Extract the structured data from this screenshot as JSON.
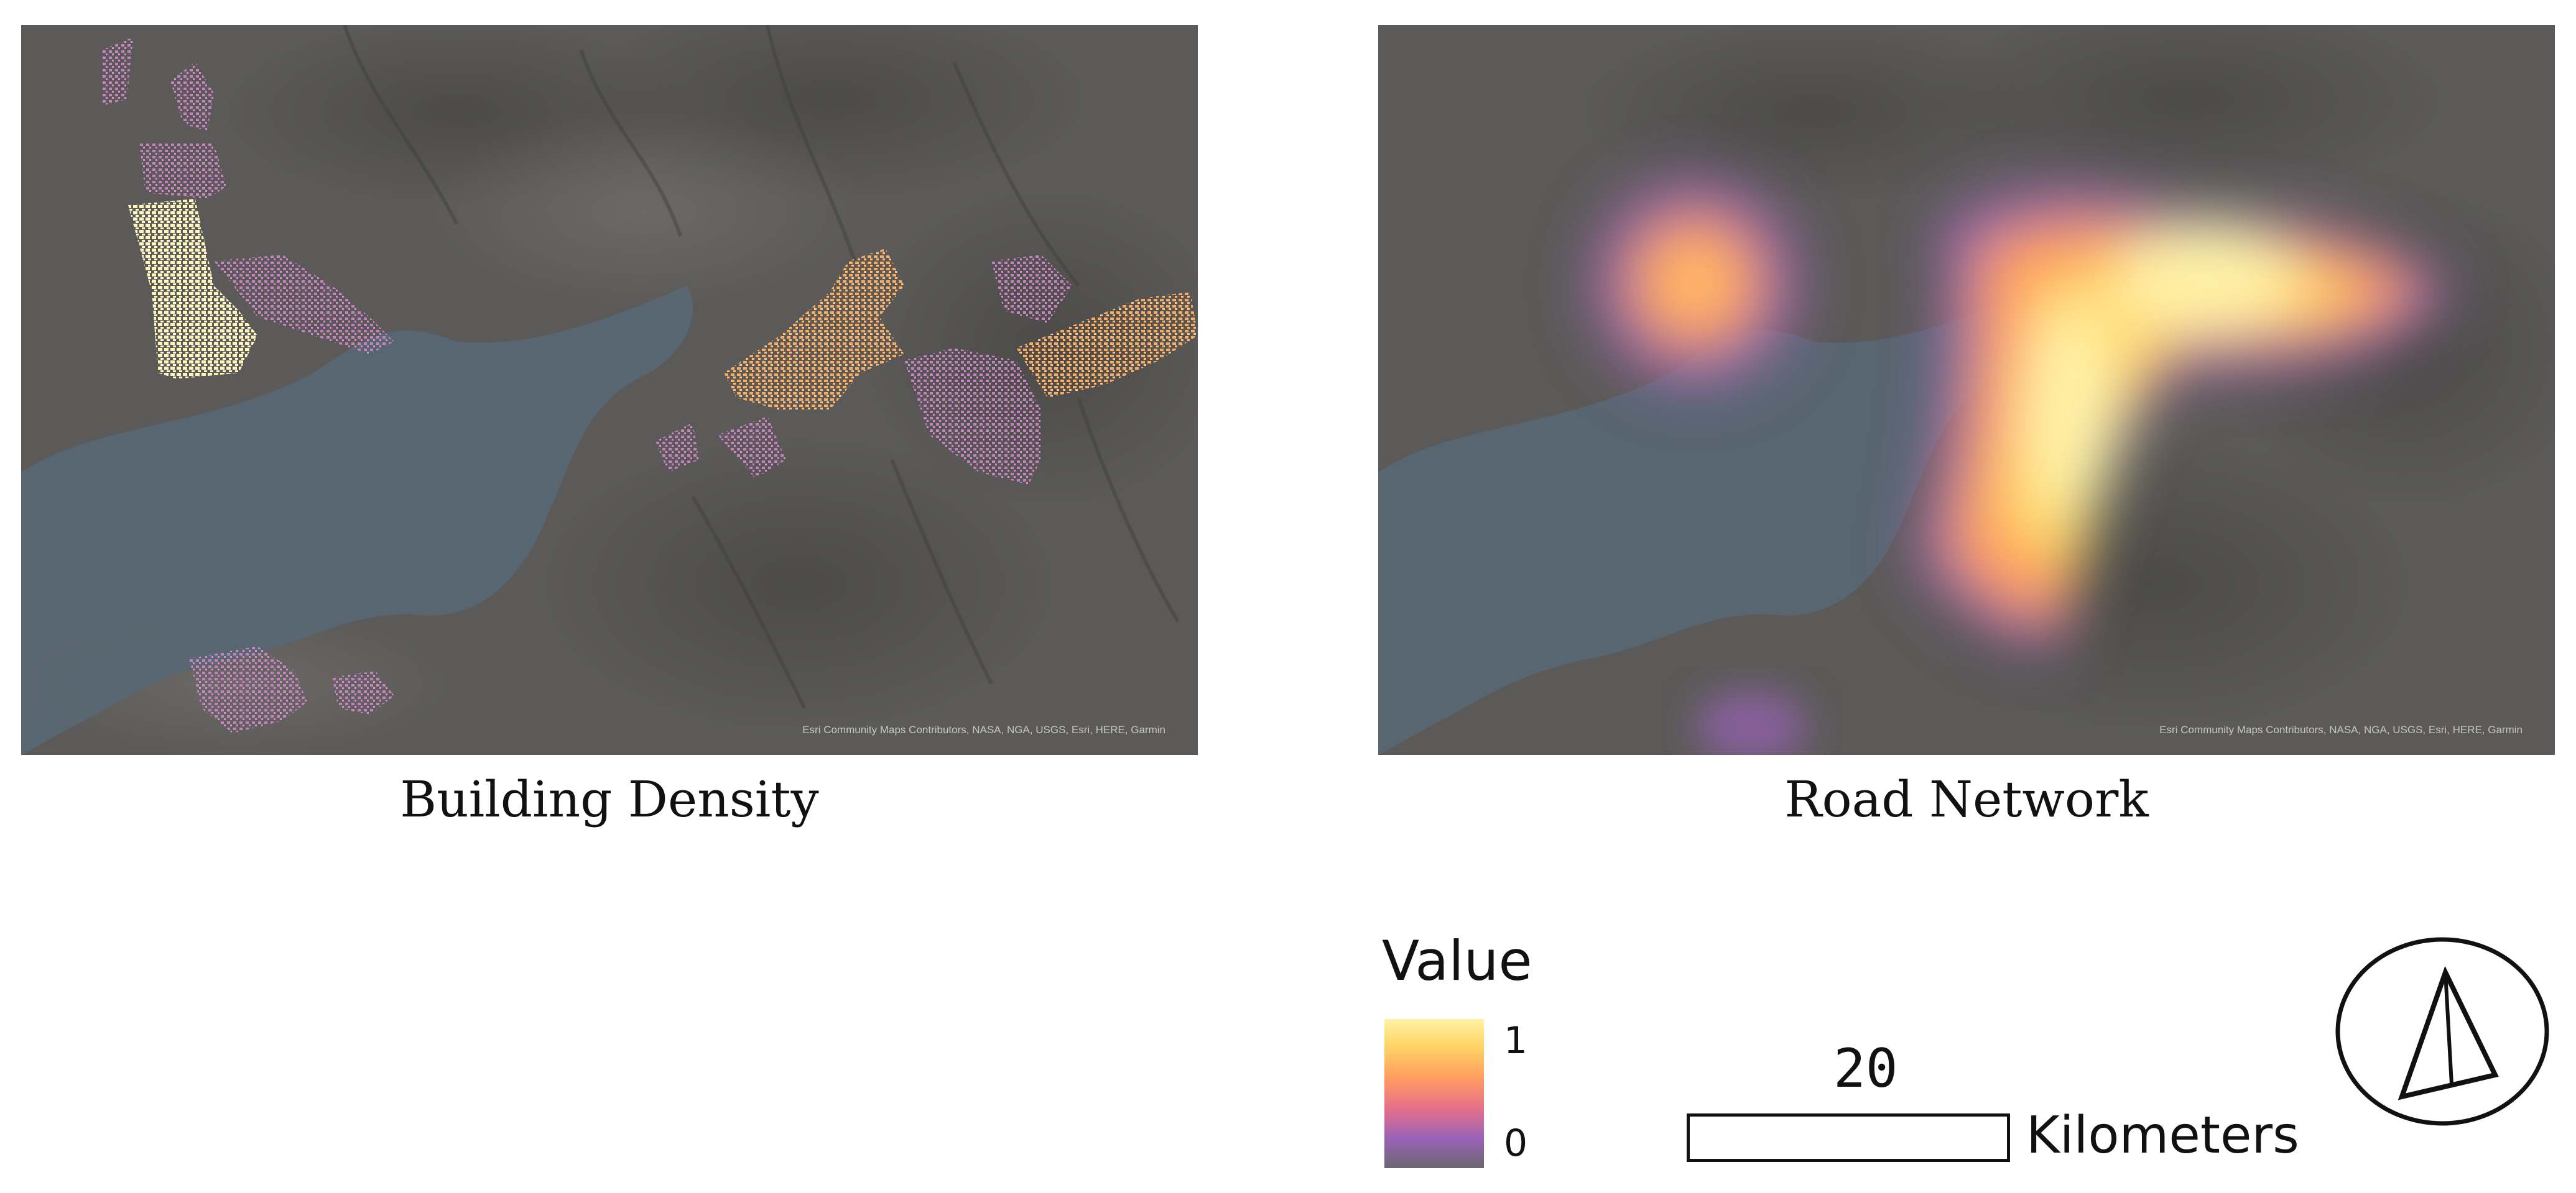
{
  "maps": [
    {
      "title": "Building Density",
      "attribution": "Esri Community Maps Contributors, NASA, NGA, USGS, Esri, HERE, Garmin"
    },
    {
      "title": "Road Network",
      "attribution": "Esri Community Maps Contributors, NASA, NGA, USGS, Esri, HERE, Garmin"
    }
  ],
  "legend": {
    "title": "Value",
    "max_label": "1",
    "min_label": "0",
    "colors": [
      "#fff2a6",
      "#ffd566",
      "#ff9b60",
      "#e6708a",
      "#9a63b8",
      "#6c6670"
    ]
  },
  "scale_bar": {
    "value": "20",
    "unit": "Kilometers"
  },
  "north_arrow": {
    "icon": "north-arrow-icon"
  },
  "colors": {
    "basemap": "#5b5a58",
    "water": "#586773",
    "low_density": "#c87fc4",
    "medium_density": "#ffab5c",
    "high_density": "#fff6b8"
  }
}
